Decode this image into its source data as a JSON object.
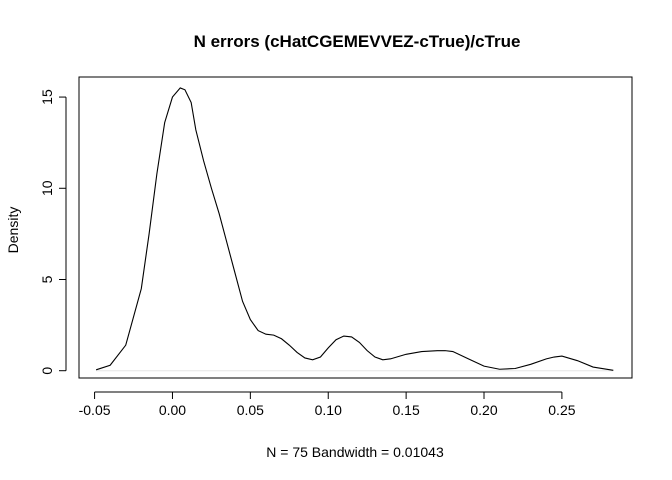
{
  "chart_data": {
    "type": "line",
    "title": "N errors (cHatCGEMEVVEZ-cTrue)/cTrue",
    "xlabel": "N = 75   Bandwidth = 0.01043",
    "ylabel": "Density",
    "xlim": [
      -0.06,
      0.295
    ],
    "ylim": [
      -0.4,
      16.1
    ],
    "xticks": [
      -0.05,
      0.0,
      0.05,
      0.1,
      0.15,
      0.2,
      0.25
    ],
    "xtick_labels": [
      "-0.05",
      "0.00",
      "0.05",
      "0.10",
      "0.15",
      "0.20",
      "0.25"
    ],
    "yticks": [
      0,
      5,
      10,
      15
    ],
    "ytick_labels": [
      "0",
      "5",
      "10",
      "15"
    ],
    "grid": false,
    "legend": "none",
    "series": [
      {
        "x": [
          -0.049,
          -0.04,
          -0.03,
          -0.02,
          -0.015,
          -0.01,
          -0.005,
          0.0,
          0.005,
          0.008,
          0.012,
          0.015,
          0.02,
          0.025,
          0.03,
          0.035,
          0.04,
          0.045,
          0.05,
          0.055,
          0.06,
          0.065,
          0.07,
          0.075,
          0.08,
          0.085,
          0.09,
          0.095,
          0.1,
          0.105,
          0.11,
          0.115,
          0.12,
          0.125,
          0.13,
          0.135,
          0.14,
          0.15,
          0.16,
          0.17,
          0.175,
          0.18,
          0.19,
          0.2,
          0.21,
          0.22,
          0.23,
          0.24,
          0.245,
          0.25,
          0.26,
          0.27,
          0.283
        ],
        "y": [
          0.05,
          0.3,
          1.4,
          4.5,
          7.5,
          10.8,
          13.6,
          15.0,
          15.5,
          15.4,
          14.7,
          13.2,
          11.5,
          10.0,
          8.6,
          7.0,
          5.4,
          3.8,
          2.8,
          2.2,
          2.0,
          1.95,
          1.75,
          1.4,
          1.0,
          0.7,
          0.6,
          0.75,
          1.25,
          1.7,
          1.9,
          1.85,
          1.55,
          1.1,
          0.75,
          0.6,
          0.65,
          0.9,
          1.05,
          1.1,
          1.1,
          1.05,
          0.65,
          0.25,
          0.08,
          0.12,
          0.35,
          0.65,
          0.75,
          0.8,
          0.55,
          0.2,
          0.02
        ]
      }
    ]
  }
}
